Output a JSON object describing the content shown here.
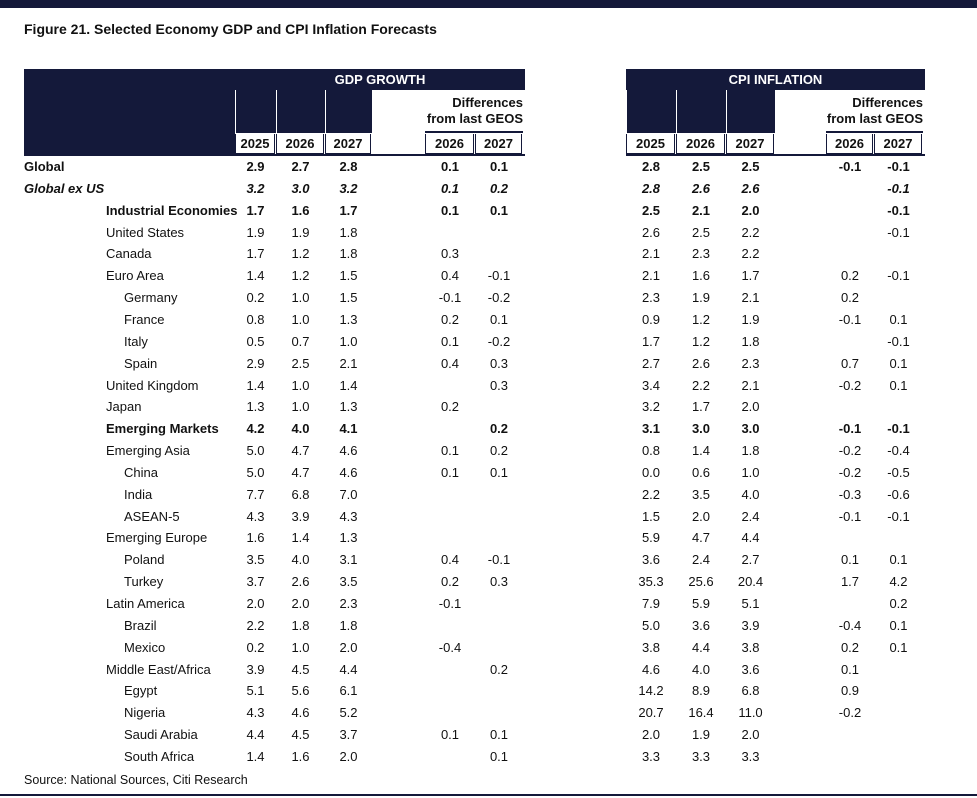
{
  "title": "Figure 21. Selected Economy GDP and CPI Inflation Forecasts",
  "table": {
    "groups": [
      {
        "title": "GDP GROWTH",
        "years": [
          "2025",
          "2026",
          "2027"
        ],
        "diff_title": "Differences from last GEOS",
        "diff_years": [
          "2026",
          "2027"
        ]
      },
      {
        "title": "CPI INFLATION",
        "years": [
          "2025",
          "2026",
          "2027"
        ],
        "diff_title": "Differences from last GEOS",
        "diff_years": [
          "2026",
          "2027"
        ]
      }
    ],
    "rows": [
      {
        "label": "Global",
        "cells": [
          "2.9",
          "2.7",
          "2.8",
          "0.1",
          "0.1",
          "2.8",
          "2.5",
          "2.5",
          "-0.1",
          "-0.1"
        ]
      },
      {
        "label": "Global ex US",
        "cells": [
          "3.2",
          "3.0",
          "3.2",
          "0.1",
          "0.2",
          "2.8",
          "2.6",
          "2.6",
          null,
          "-0.1"
        ]
      },
      {
        "label": "Industrial Economies",
        "cells": [
          "1.7",
          "1.6",
          "1.7",
          "0.1",
          "0.1",
          "2.5",
          "2.1",
          "2.0",
          null,
          "-0.1"
        ]
      },
      {
        "label": "United States",
        "cells": [
          "1.9",
          "1.9",
          "1.8",
          null,
          null,
          "2.6",
          "2.5",
          "2.2",
          null,
          "-0.1"
        ]
      },
      {
        "label": "Canada",
        "cells": [
          "1.7",
          "1.2",
          "1.8",
          "0.3",
          null,
          "2.1",
          "2.3",
          "2.2",
          null,
          null
        ]
      },
      {
        "label": "Euro Area",
        "cells": [
          "1.4",
          "1.2",
          "1.5",
          "0.4",
          "-0.1",
          "2.1",
          "1.6",
          "1.7",
          "0.2",
          "-0.1"
        ]
      },
      {
        "label": "Germany",
        "cells": [
          "0.2",
          "1.0",
          "1.5",
          "-0.1",
          "-0.2",
          "2.3",
          "1.9",
          "2.1",
          "0.2",
          null
        ]
      },
      {
        "label": "France",
        "cells": [
          "0.8",
          "1.0",
          "1.3",
          "0.2",
          "0.1",
          "0.9",
          "1.2",
          "1.9",
          "-0.1",
          "0.1"
        ]
      },
      {
        "label": "Italy",
        "cells": [
          "0.5",
          "0.7",
          "1.0",
          "0.1",
          "-0.2",
          "1.7",
          "1.2",
          "1.8",
          null,
          "-0.1"
        ]
      },
      {
        "label": "Spain",
        "cells": [
          "2.9",
          "2.5",
          "2.1",
          "0.4",
          "0.3",
          "2.7",
          "2.6",
          "2.3",
          "0.7",
          "0.1"
        ]
      },
      {
        "label": "United Kingdom",
        "cells": [
          "1.4",
          "1.0",
          "1.4",
          null,
          "0.3",
          "3.4",
          "2.2",
          "2.1",
          "-0.2",
          "0.1"
        ]
      },
      {
        "label": "Japan",
        "cells": [
          "1.3",
          "1.0",
          "1.3",
          "0.2",
          null,
          "3.2",
          "1.7",
          "2.0",
          null,
          null
        ]
      },
      {
        "label": "Emerging Markets",
        "cells": [
          "4.2",
          "4.0",
          "4.1",
          null,
          "0.2",
          "3.1",
          "3.0",
          "3.0",
          "-0.1",
          "-0.1"
        ]
      },
      {
        "label": "Emerging Asia",
        "cells": [
          "5.0",
          "4.7",
          "4.6",
          "0.1",
          "0.2",
          "0.8",
          "1.4",
          "1.8",
          "-0.2",
          "-0.4"
        ]
      },
      {
        "label": "China",
        "cells": [
          "5.0",
          "4.7",
          "4.6",
          "0.1",
          "0.1",
          "0.0",
          "0.6",
          "1.0",
          "-0.2",
          "-0.5"
        ]
      },
      {
        "label": "India",
        "cells": [
          "7.7",
          "6.8",
          "7.0",
          null,
          null,
          "2.2",
          "3.5",
          "4.0",
          "-0.3",
          "-0.6"
        ]
      },
      {
        "label": "ASEAN-5",
        "cells": [
          "4.3",
          "3.9",
          "4.3",
          null,
          null,
          "1.5",
          "2.0",
          "2.4",
          "-0.1",
          "-0.1"
        ]
      },
      {
        "label": "Emerging Europe",
        "cells": [
          "1.6",
          "1.4",
          "1.3",
          null,
          null,
          "5.9",
          "4.7",
          "4.4",
          null,
          null
        ]
      },
      {
        "label": "Poland",
        "cells": [
          "3.5",
          "4.0",
          "3.1",
          "0.4",
          "-0.1",
          "3.6",
          "2.4",
          "2.7",
          "0.1",
          "0.1"
        ]
      },
      {
        "label": "Turkey",
        "cells": [
          "3.7",
          "2.6",
          "3.5",
          "0.2",
          "0.3",
          "35.3",
          "25.6",
          "20.4",
          "1.7",
          "4.2"
        ]
      },
      {
        "label": "Latin America",
        "cells": [
          "2.0",
          "2.0",
          "2.3",
          "-0.1",
          null,
          "7.9",
          "5.9",
          "5.1",
          null,
          "0.2"
        ]
      },
      {
        "label": "Brazil",
        "cells": [
          "2.2",
          "1.8",
          "1.8",
          null,
          null,
          "5.0",
          "3.6",
          "3.9",
          "-0.4",
          "0.1"
        ]
      },
      {
        "label": "Mexico",
        "cells": [
          "0.2",
          "1.0",
          "2.0",
          "-0.4",
          null,
          "3.8",
          "4.4",
          "3.8",
          "0.2",
          "0.1"
        ]
      },
      {
        "label": "Middle East/Africa",
        "cells": [
          "3.9",
          "4.5",
          "4.4",
          null,
          "0.2",
          "4.6",
          "4.0",
          "3.6",
          "0.1",
          null
        ]
      },
      {
        "label": "Egypt",
        "cells": [
          "5.1",
          "5.6",
          "6.1",
          null,
          null,
          "14.2",
          "8.9",
          "6.8",
          "0.9",
          null
        ]
      },
      {
        "label": "Nigeria",
        "cells": [
          "4.3",
          "4.6",
          "5.2",
          null,
          null,
          "20.7",
          "16.4",
          "11.0",
          "-0.2",
          null
        ]
      },
      {
        "label": "Saudi Arabia",
        "cells": [
          "4.4",
          "4.5",
          "3.7",
          "0.1",
          "0.1",
          "2.0",
          "1.9",
          "2.0",
          null,
          null
        ]
      },
      {
        "label": "South Africa",
        "cells": [
          "1.4",
          "1.6",
          "2.0",
          null,
          "0.1",
          "3.3",
          "3.3",
          "3.3",
          null,
          null
        ]
      }
    ]
  },
  "source": "Source: National Sources, Citi Research"
}
